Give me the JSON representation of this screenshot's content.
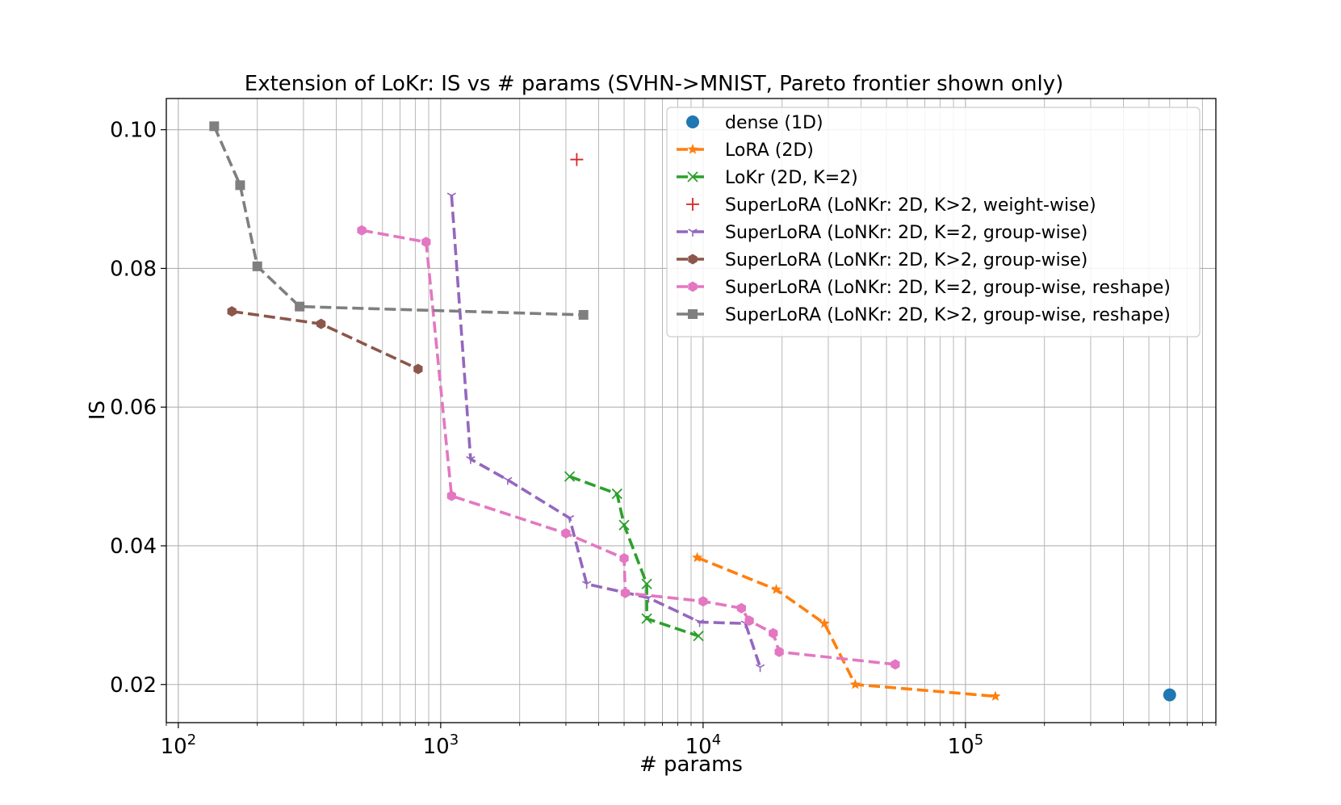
{
  "chart_data": {
    "type": "line",
    "title": "Extension of LoKr: IS vs # params (SVHN->MNIST, Pareto frontier shown only)",
    "xlabel": "# params",
    "ylabel": "IS",
    "xscale": "log",
    "xlim": [
      90,
      900000
    ],
    "ylim": [
      0.0145,
      0.1045
    ],
    "x_ticks": [
      {
        "value": 100,
        "base": "10",
        "exp": "2"
      },
      {
        "value": 1000,
        "base": "10",
        "exp": "3"
      },
      {
        "value": 10000,
        "base": "10",
        "exp": "4"
      },
      {
        "value": 100000,
        "base": "10",
        "exp": "5"
      }
    ],
    "y_ticks": [
      {
        "value": 0.02,
        "label": "0.02"
      },
      {
        "value": 0.04,
        "label": "0.04"
      },
      {
        "value": 0.06,
        "label": "0.06"
      },
      {
        "value": 0.08,
        "label": "0.08"
      },
      {
        "value": 0.1,
        "label": "0.10"
      }
    ],
    "grid": true,
    "legend_position": "top-right",
    "series": [
      {
        "name": "dense (1D)",
        "color": "#1f77b4",
        "marker": "circle",
        "line": false,
        "x": [
          600000
        ],
        "y": [
          0.0185
        ]
      },
      {
        "name": "LoRA (2D)",
        "color": "#ff7f0e",
        "marker": "star",
        "line": true,
        "x": [
          9500,
          19000,
          29000,
          38000,
          130000
        ],
        "y": [
          0.0383,
          0.0337,
          0.0288,
          0.02,
          0.0183
        ]
      },
      {
        "name": "LoKr (2D, K=2)",
        "color": "#2ca02c",
        "marker": "x",
        "line": true,
        "x": [
          3100,
          4700,
          5000,
          6100,
          6100,
          9600
        ],
        "y": [
          0.05,
          0.0475,
          0.043,
          0.0345,
          0.0295,
          0.027
        ]
      },
      {
        "name": "SuperLoRA (LoNKr: 2D, K>2, weight-wise)",
        "color": "#d62728",
        "marker": "plus",
        "line": false,
        "x": [
          3300
        ],
        "y": [
          0.0957
        ]
      },
      {
        "name": "SuperLoRA (LoNKr: 2D, K=2, group-wise)",
        "color": "#9467bd",
        "marker": "tri",
        "line": true,
        "x": [
          1100,
          1300,
          1800,
          3100,
          3600,
          6200,
          9700,
          14500,
          16500
        ],
        "y": [
          0.0905,
          0.0525,
          0.0495,
          0.044,
          0.0345,
          0.0325,
          0.029,
          0.0288,
          0.0225
        ]
      },
      {
        "name": "SuperLoRA (LoNKr: 2D, K>2, group-wise)",
        "color": "#8c564b",
        "marker": "hexagon",
        "line": true,
        "x": [
          160,
          350,
          820
        ],
        "y": [
          0.0738,
          0.072,
          0.0655
        ]
      },
      {
        "name": "SuperLoRA (LoNKr: 2D, K=2, group-wise, reshape)",
        "color": "#e377c2",
        "marker": "hexagon",
        "line": true,
        "x": [
          500,
          880,
          1100,
          3000,
          5000,
          5050,
          10000,
          14000,
          15000,
          18500,
          19500,
          54000
        ],
        "y": [
          0.0855,
          0.0838,
          0.0472,
          0.0418,
          0.0382,
          0.0332,
          0.032,
          0.031,
          0.0292,
          0.0274,
          0.0247,
          0.0229
        ]
      },
      {
        "name": "SuperLoRA (LoNKr: 2D, K>2, group-wise, reshape)",
        "color": "#7f7f7f",
        "marker": "square",
        "line": true,
        "x": [
          137,
          172,
          200,
          290,
          3500
        ],
        "y": [
          0.1005,
          0.092,
          0.0803,
          0.0745,
          0.0733
        ]
      }
    ]
  }
}
